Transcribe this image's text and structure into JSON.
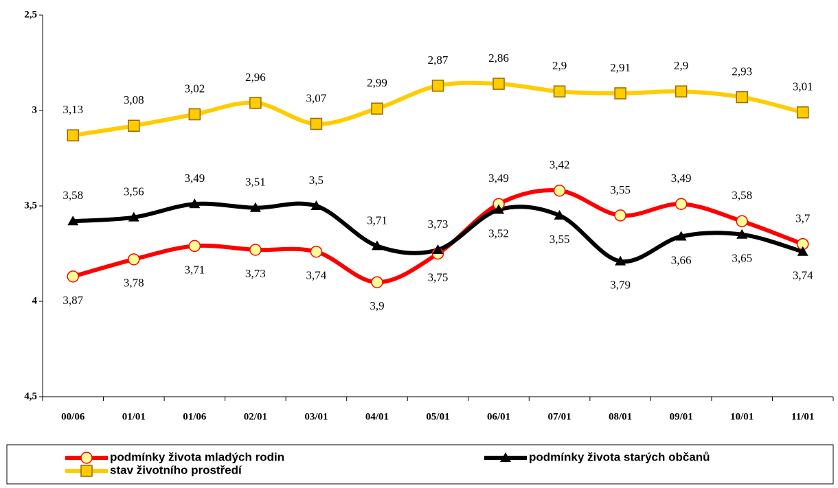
{
  "chart_data": {
    "type": "line",
    "categories": [
      "00/06",
      "01/01",
      "01/06",
      "02/01",
      "03/01",
      "04/01",
      "05/01",
      "06/01",
      "07/01",
      "08/01",
      "09/01",
      "10/01",
      "11/01"
    ],
    "series": [
      {
        "name": "podmínky života mladých rodin",
        "color": "#ff0000",
        "marker": "circle",
        "values": [
          3.87,
          3.78,
          3.71,
          3.73,
          3.74,
          3.9,
          3.75,
          3.49,
          3.42,
          3.55,
          3.49,
          3.58,
          3.7
        ],
        "value_labels": [
          "3,87",
          "3,78",
          "3,71",
          "3,73",
          "3,74",
          "3,9",
          "3,75",
          "3,49",
          "3,42",
          "3,55",
          "3,49",
          "3,58",
          "3,7"
        ]
      },
      {
        "name": "podmínky života starých občanů",
        "color": "#000000",
        "marker": "triangle",
        "values": [
          3.58,
          3.56,
          3.49,
          3.51,
          3.5,
          3.71,
          3.73,
          3.52,
          3.55,
          3.79,
          3.66,
          3.65,
          3.74
        ],
        "value_labels": [
          "3,58",
          "3,56",
          "3,49",
          "3,51",
          "3,5",
          "3,71",
          "3,73",
          "3,52",
          "3,55",
          "3,79",
          "3,66",
          "3,65",
          "3,74"
        ]
      },
      {
        "name": "stav životního prostředí",
        "color": "#ffcc00",
        "marker": "square",
        "values": [
          3.13,
          3.08,
          3.02,
          2.96,
          3.07,
          2.99,
          2.87,
          2.86,
          2.9,
          2.91,
          2.9,
          2.93,
          3.01
        ],
        "value_labels": [
          "3,13",
          "3,08",
          "3,02",
          "2,96",
          "3,07",
          "2,99",
          "2,87",
          "2,86",
          "2,9",
          "2,91",
          "2,9",
          "2,93",
          "3,01"
        ]
      }
    ],
    "ylim": [
      2.5,
      4.5
    ],
    "y_reversed": true,
    "yticks": [
      {
        "value": 2.5,
        "label": "2,5"
      },
      3,
      {
        "value": 3.5,
        "label": "3,5"
      },
      4,
      {
        "value": 4.5,
        "label": "4,5"
      }
    ],
    "grid": false
  }
}
